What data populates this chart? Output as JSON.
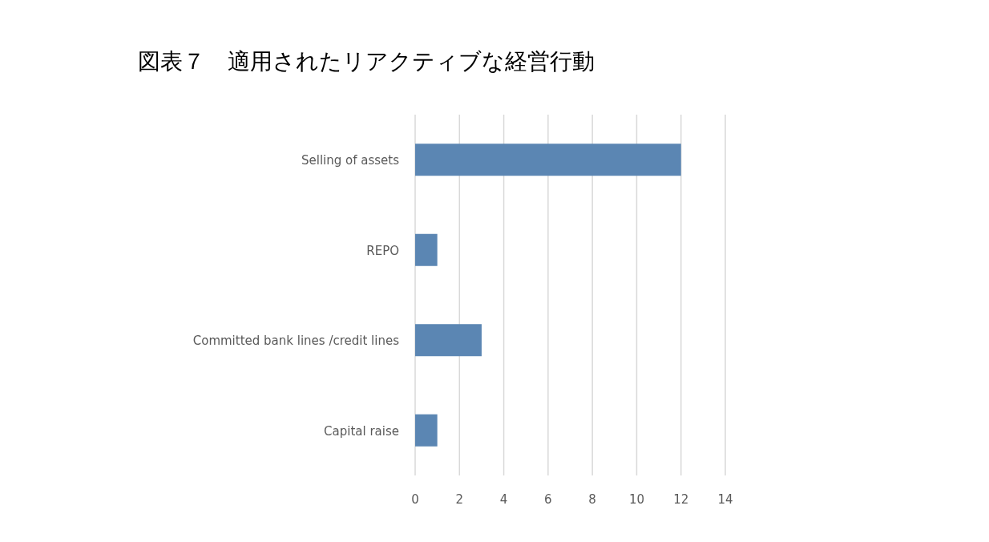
{
  "chart_data": {
    "type": "bar",
    "orientation": "horizontal",
    "title": "図表７　適用されたリアクティブな経営行動",
    "categories": [
      "Selling of assets",
      "REPO",
      "Committed bank lines /credit lines",
      "Capital raise"
    ],
    "values": [
      12,
      1,
      3,
      1
    ],
    "color": "#5b86b3",
    "xlim": [
      0,
      14
    ],
    "xticks": [
      0,
      2,
      4,
      6,
      8,
      10,
      12,
      14
    ],
    "grid": "x"
  }
}
